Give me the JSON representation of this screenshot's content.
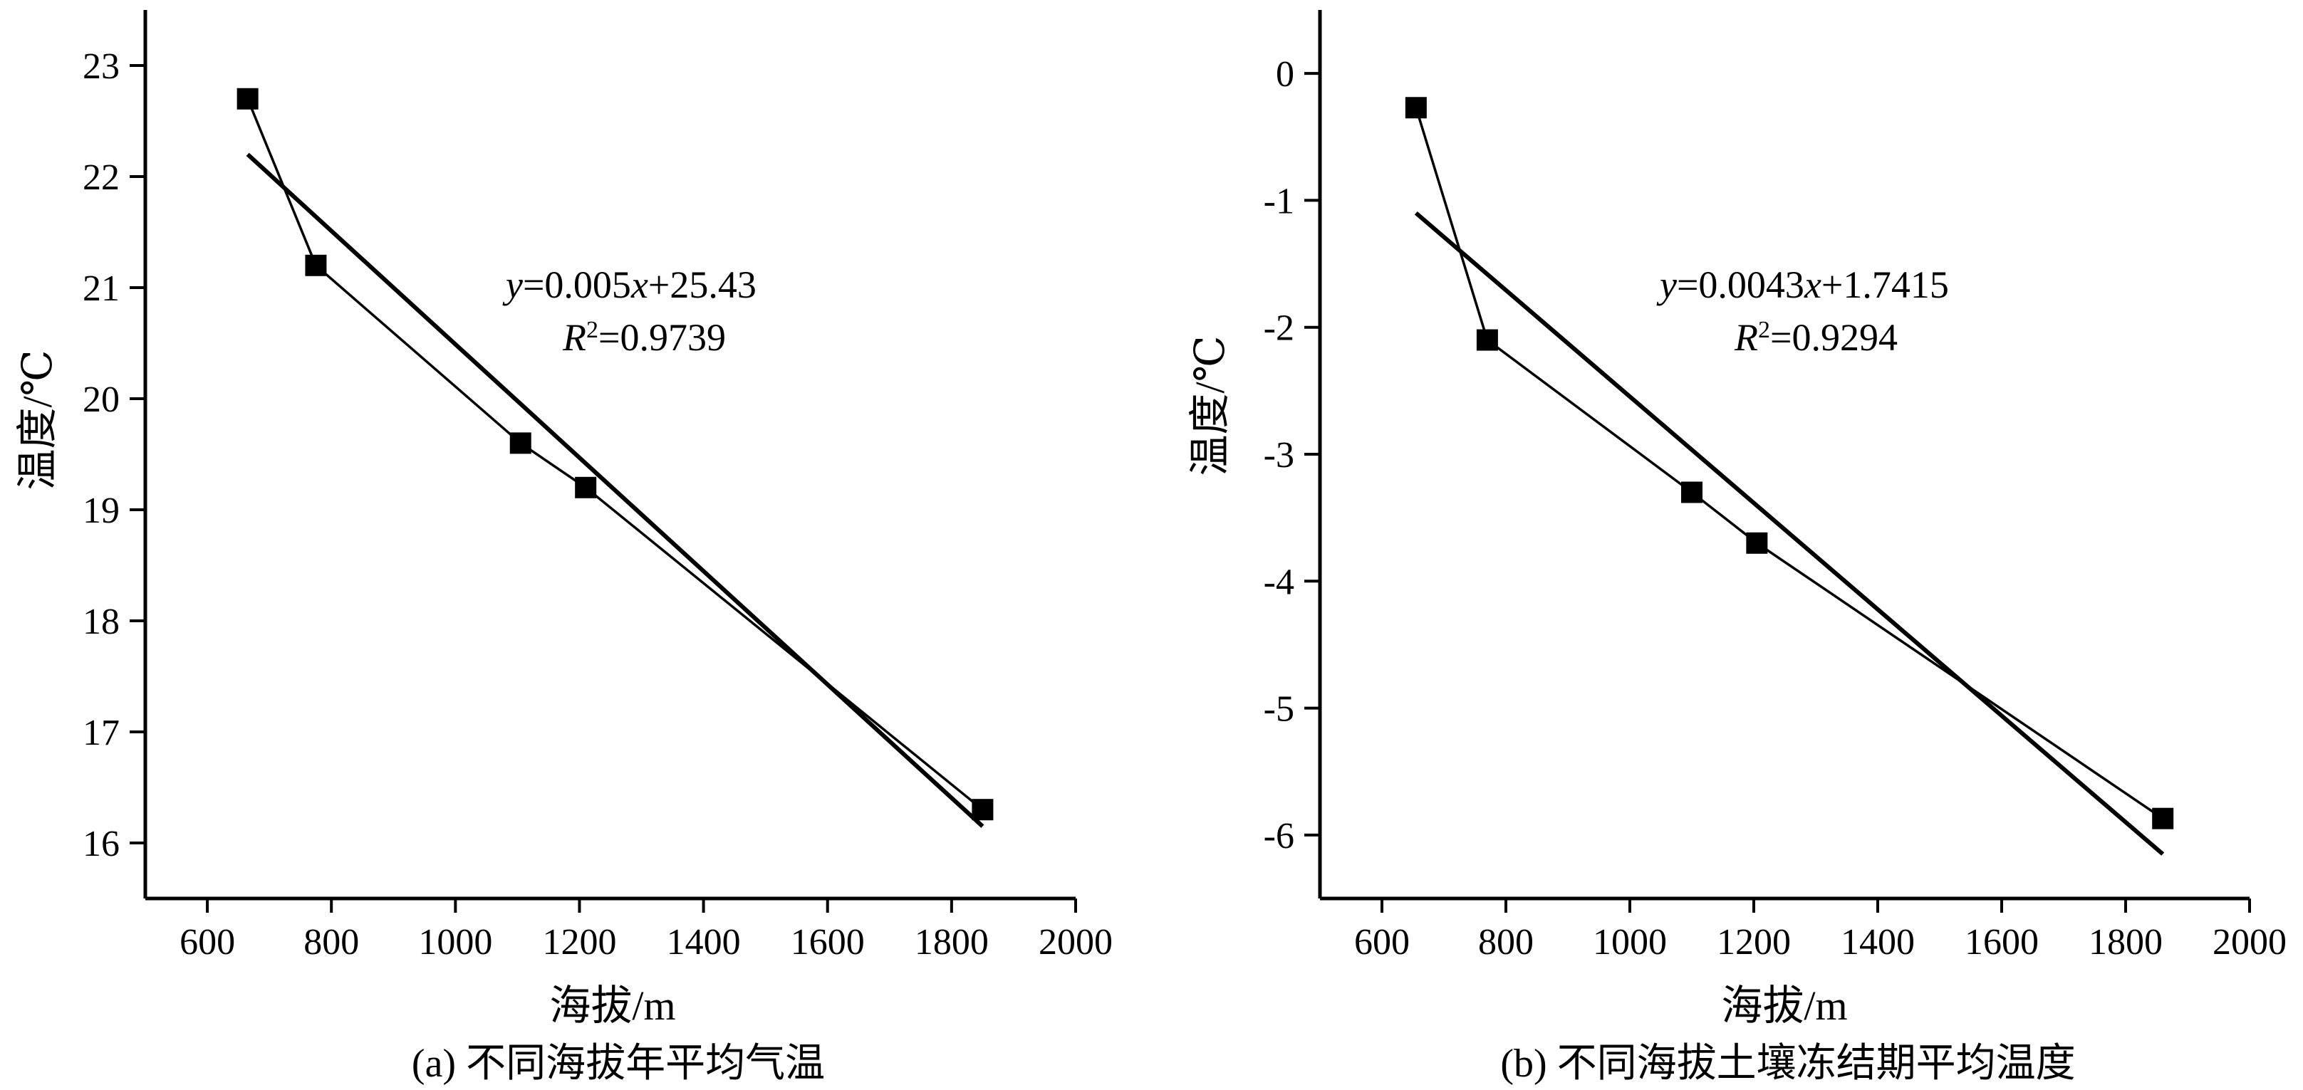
{
  "chart_data": [
    {
      "type": "scatter",
      "panel": "a",
      "caption": "(a) 不同海拔年平均气温",
      "xlabel": "海拔/m",
      "ylabel": "温度/℃",
      "xlim": [
        500,
        2000
      ],
      "ylim": [
        15.5,
        23.5
      ],
      "xticks": [
        600,
        800,
        1000,
        1200,
        1400,
        1600,
        1800,
        2000
      ],
      "yticks": [
        16,
        17,
        18,
        19,
        20,
        21,
        22,
        23
      ],
      "grid": false,
      "series": [
        {
          "marker": "square",
          "connected": true,
          "x": [
            665,
            775,
            1105,
            1210,
            1850
          ],
          "y": [
            22.7,
            21.2,
            19.6,
            19.2,
            16.3
          ]
        }
      ],
      "trendline": {
        "x": [
          665,
          1850
        ],
        "y": [
          22.2,
          16.15
        ]
      },
      "equation": {
        "y_var": "y",
        "eq_prefix": "=0.005",
        "x_var": "x",
        "eq_suffix": "+25.43",
        "r_var": "R",
        "r_sup": "2",
        "r_value": "=0.9739"
      }
    },
    {
      "type": "scatter",
      "panel": "b",
      "caption": "(b) 不同海拔土壤冻结期平均温度",
      "xlabel": "海拔/m",
      "ylabel": "温度/℃",
      "xlim": [
        500,
        2000
      ],
      "ylim": [
        -6.5,
        0.5
      ],
      "xticks": [
        600,
        800,
        1000,
        1200,
        1400,
        1600,
        1800,
        2000
      ],
      "yticks": [
        0,
        -1,
        -2,
        -3,
        -4,
        -5,
        -6
      ],
      "grid": false,
      "series": [
        {
          "marker": "square",
          "connected": true,
          "x": [
            655,
            770,
            1100,
            1205,
            1860
          ],
          "y": [
            -0.27,
            -2.1,
            -3.3,
            -3.7,
            -5.87
          ]
        }
      ],
      "trendline": {
        "x": [
          655,
          1860
        ],
        "y": [
          -1.1,
          -6.15
        ]
      },
      "equation": {
        "y_var": "y",
        "eq_prefix": "=0.0043",
        "x_var": "x",
        "eq_suffix": "+1.7415",
        "r_var": "R",
        "r_sup": "2",
        "r_value": "=0.9294"
      }
    }
  ]
}
